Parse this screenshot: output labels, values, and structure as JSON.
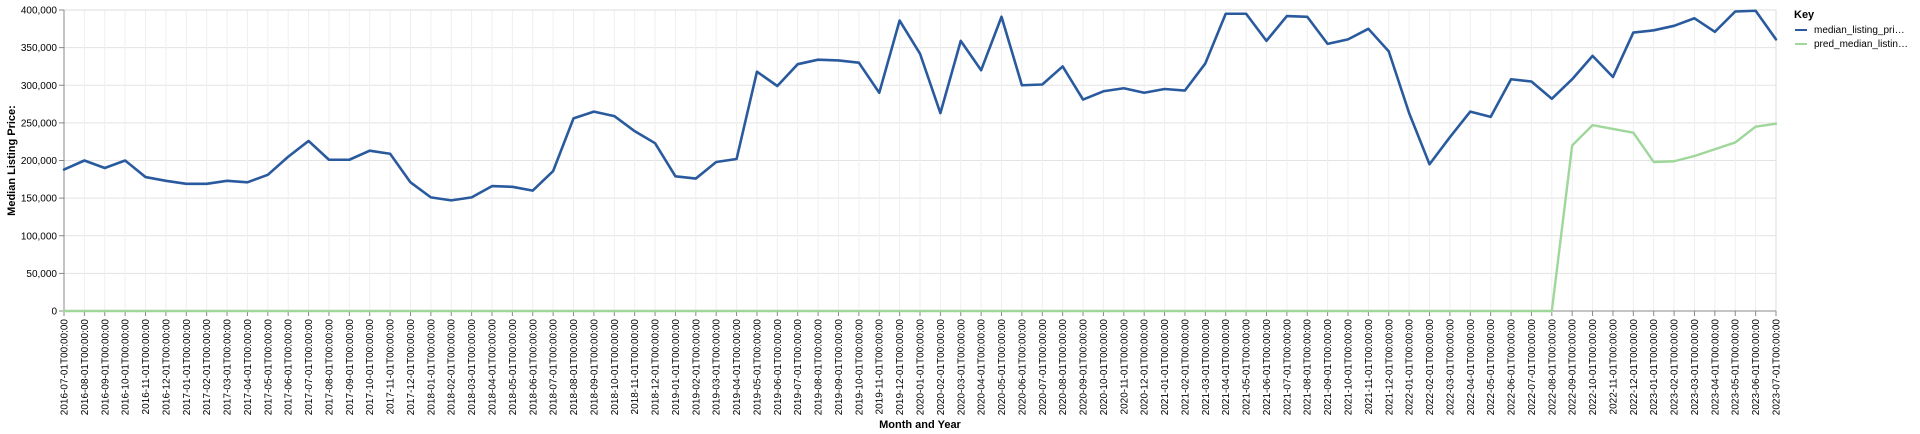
{
  "chart_data": {
    "type": "line",
    "title": "",
    "xlabel": "Month and Year",
    "ylabel": "Median Listing Price:",
    "ylim": [
      0,
      400000
    ],
    "y_ticks": [
      "0",
      "50,000",
      "100,000",
      "150,000",
      "200,000",
      "250,000",
      "300,000",
      "350,000",
      "400,000"
    ],
    "grid": true,
    "legend_position": "top-right",
    "legend_title": "Key",
    "x": [
      "2016-07-01T00:00:00",
      "2016-08-01T00:00:00",
      "2016-09-01T00:00:00",
      "2016-10-01T00:00:00",
      "2016-11-01T00:00:00",
      "2016-12-01T00:00:00",
      "2017-01-01T00:00:00",
      "2017-02-01T00:00:00",
      "2017-03-01T00:00:00",
      "2017-04-01T00:00:00",
      "2017-05-01T00:00:00",
      "2017-06-01T00:00:00",
      "2017-07-01T00:00:00",
      "2017-08-01T00:00:00",
      "2017-09-01T00:00:00",
      "2017-10-01T00:00:00",
      "2017-11-01T00:00:00",
      "2017-12-01T00:00:00",
      "2018-01-01T00:00:00",
      "2018-02-01T00:00:00",
      "2018-03-01T00:00:00",
      "2018-04-01T00:00:00",
      "2018-05-01T00:00:00",
      "2018-06-01T00:00:00",
      "2018-07-01T00:00:00",
      "2018-08-01T00:00:00",
      "2018-09-01T00:00:00",
      "2018-10-01T00:00:00",
      "2018-11-01T00:00:00",
      "2018-12-01T00:00:00",
      "2019-01-01T00:00:00",
      "2019-02-01T00:00:00",
      "2019-03-01T00:00:00",
      "2019-04-01T00:00:00",
      "2019-05-01T00:00:00",
      "2019-06-01T00:00:00",
      "2019-07-01T00:00:00",
      "2019-08-01T00:00:00",
      "2019-09-01T00:00:00",
      "2019-10-01T00:00:00",
      "2019-11-01T00:00:00",
      "2019-12-01T00:00:00",
      "2020-01-01T00:00:00",
      "2020-02-01T00:00:00",
      "2020-03-01T00:00:00",
      "2020-04-01T00:00:00",
      "2020-05-01T00:00:00",
      "2020-06-01T00:00:00",
      "2020-07-01T00:00:00",
      "2020-08-01T00:00:00",
      "2020-09-01T00:00:00",
      "2020-10-01T00:00:00",
      "2020-11-01T00:00:00",
      "2020-12-01T00:00:00",
      "2021-01-01T00:00:00",
      "2021-02-01T00:00:00",
      "2021-03-01T00:00:00",
      "2021-04-01T00:00:00",
      "2021-05-01T00:00:00",
      "2021-06-01T00:00:00",
      "2021-07-01T00:00:00",
      "2021-08-01T00:00:00",
      "2021-09-01T00:00:00",
      "2021-10-01T00:00:00",
      "2021-11-01T00:00:00",
      "2021-12-01T00:00:00",
      "2022-01-01T00:00:00",
      "2022-02-01T00:00:00",
      "2022-03-01T00:00:00",
      "2022-04-01T00:00:00",
      "2022-05-01T00:00:00",
      "2022-06-01T00:00:00",
      "2022-07-01T00:00:00",
      "2022-08-01T00:00:00",
      "2022-09-01T00:00:00",
      "2022-10-01T00:00:00",
      "2022-11-01T00:00:00",
      "2022-12-01T00:00:00",
      "2023-01-01T00:00:00",
      "2023-02-01T00:00:00",
      "2023-03-01T00:00:00",
      "2023-04-01T00:00:00",
      "2023-05-01T00:00:00",
      "2023-06-01T00:00:00",
      "2023-07-01T00:00:00"
    ],
    "series": [
      {
        "name": "median_listing_pri…",
        "color": "#2a5a9e",
        "values": [
          188000,
          200000,
          190000,
          200000,
          178000,
          173000,
          169000,
          169000,
          173000,
          171000,
          181000,
          205000,
          226000,
          201000,
          201000,
          213000,
          209000,
          171000,
          151000,
          147000,
          151000,
          166000,
          165000,
          160000,
          186000,
          256000,
          265000,
          259000,
          239000,
          223000,
          179000,
          176000,
          198000,
          202000,
          318000,
          299000,
          328000,
          334000,
          333000,
          330000,
          290000,
          386000,
          342000,
          263000,
          359000,
          320000,
          391000,
          300000,
          301000,
          325000,
          281000,
          292000,
          296000,
          290000,
          295000,
          293000,
          329000,
          395000,
          395000,
          359000,
          392000,
          391000,
          355000,
          361000,
          375000,
          345000,
          263000,
          195000,
          231000,
          265000,
          258000,
          308000,
          305000,
          282000,
          308000,
          339000,
          311000,
          370000,
          373000,
          379000,
          389000,
          371000,
          398000,
          399000,
          361000
        ]
      },
      {
        "name": "pred_median_listin…",
        "color": "#9fd79b",
        "values": [
          0,
          0,
          0,
          0,
          0,
          0,
          0,
          0,
          0,
          0,
          0,
          0,
          0,
          0,
          0,
          0,
          0,
          0,
          0,
          0,
          0,
          0,
          0,
          0,
          0,
          0,
          0,
          0,
          0,
          0,
          0,
          0,
          0,
          0,
          0,
          0,
          0,
          0,
          0,
          0,
          0,
          0,
          0,
          0,
          0,
          0,
          0,
          0,
          0,
          0,
          0,
          0,
          0,
          0,
          0,
          0,
          0,
          0,
          0,
          0,
          0,
          0,
          0,
          0,
          0,
          0,
          0,
          0,
          0,
          0,
          0,
          0,
          0,
          0,
          220000,
          247000,
          242000,
          237000,
          198000,
          199000,
          206000,
          215000,
          224000,
          245000,
          249000
        ]
      }
    ]
  }
}
